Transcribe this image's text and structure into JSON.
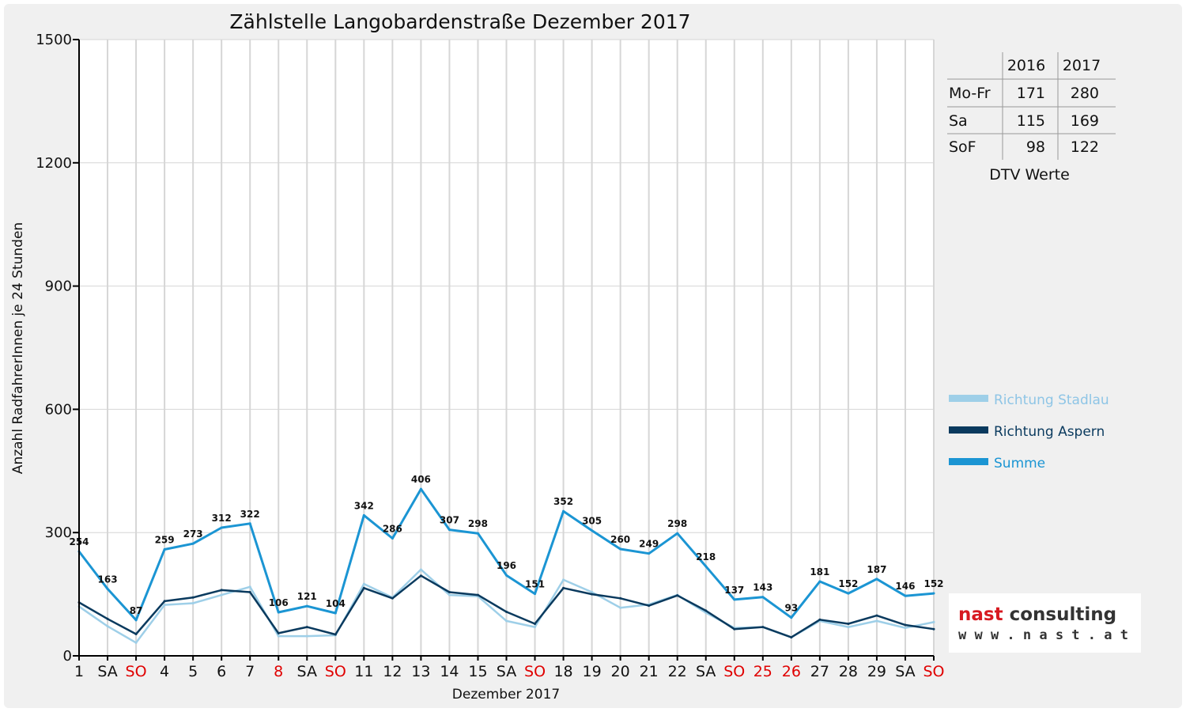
{
  "chart_data": {
    "type": "line",
    "title": "Zählstelle Langobardenstraße Dezember 2017",
    "xlabel": "Dezember 2017",
    "ylabel": "Anzahl RadfahrerInnen je 24 Stunden",
    "ylim": [
      0,
      1500
    ],
    "yticks": [
      "0",
      "300",
      "600",
      "900",
      "1200",
      "1500"
    ],
    "grid": true,
    "legend_position": "right",
    "categories": [
      "1",
      "SA",
      "SO",
      "4",
      "5",
      "6",
      "7",
      "8",
      "SA",
      "SO",
      "11",
      "12",
      "13",
      "14",
      "15",
      "SA",
      "SO",
      "18",
      "19",
      "20",
      "21",
      "22",
      "SA",
      "SO",
      "25",
      "26",
      "27",
      "28",
      "29",
      "SA",
      "SO"
    ],
    "red_categories": [
      2,
      7,
      9,
      16,
      23,
      24,
      25,
      30
    ],
    "series": [
      {
        "name": "Richtung Stadlau",
        "color": "#9ecfe8",
        "values": [
          120,
          72,
          32,
          124,
          128,
          148,
          168,
          48,
          48,
          50,
          175,
          142,
          210,
          148,
          145,
          85,
          70,
          185,
          155,
          117,
          125,
          148,
          105,
          68,
          70,
          45,
          85,
          70,
          85,
          68,
          82
        ]
      },
      {
        "name": "Richtung Aspern",
        "color": "#0a3a5e",
        "values": [
          130,
          90,
          53,
          133,
          142,
          160,
          155,
          55,
          70,
          52,
          165,
          140,
          195,
          155,
          148,
          107,
          78,
          165,
          150,
          140,
          122,
          147,
          110,
          65,
          70,
          45,
          88,
          78,
          98,
          75,
          65
        ]
      },
      {
        "name": "Summe",
        "color": "#1b95d3",
        "values": [
          254,
          163,
          87,
          259,
          273,
          312,
          322,
          106,
          121,
          104,
          342,
          286,
          406,
          307,
          298,
          196,
          151,
          352,
          305,
          260,
          249,
          298,
          218,
          137,
          143,
          93,
          181,
          152,
          187,
          146,
          152
        ]
      }
    ],
    "data_labels": [
      "254",
      "163",
      "87",
      "259",
      "273",
      "312",
      "322",
      "106",
      "121",
      "104",
      "342",
      "286",
      "406",
      "307",
      "298",
      "196",
      "151",
      "352",
      "305",
      "260",
      "249",
      "298",
      "218",
      "137",
      "143",
      "93",
      "181",
      "152",
      "187",
      "146",
      "152"
    ]
  },
  "dtv_table": {
    "headers": [
      "2016",
      "2017"
    ],
    "rows": [
      {
        "label": "Mo-Fr",
        "v2016": "171",
        "v2017": "280"
      },
      {
        "label": "Sa",
        "v2016": "115",
        "v2017": "169"
      },
      {
        "label": "SoF",
        "v2016": "98",
        "v2017": "122"
      }
    ],
    "caption": "DTV Werte"
  },
  "logo": {
    "line1": "nast consulting",
    "line2": "w w w . n a s t . a t",
    "color_nast": "#d71920",
    "color_consulting": "#333333"
  }
}
